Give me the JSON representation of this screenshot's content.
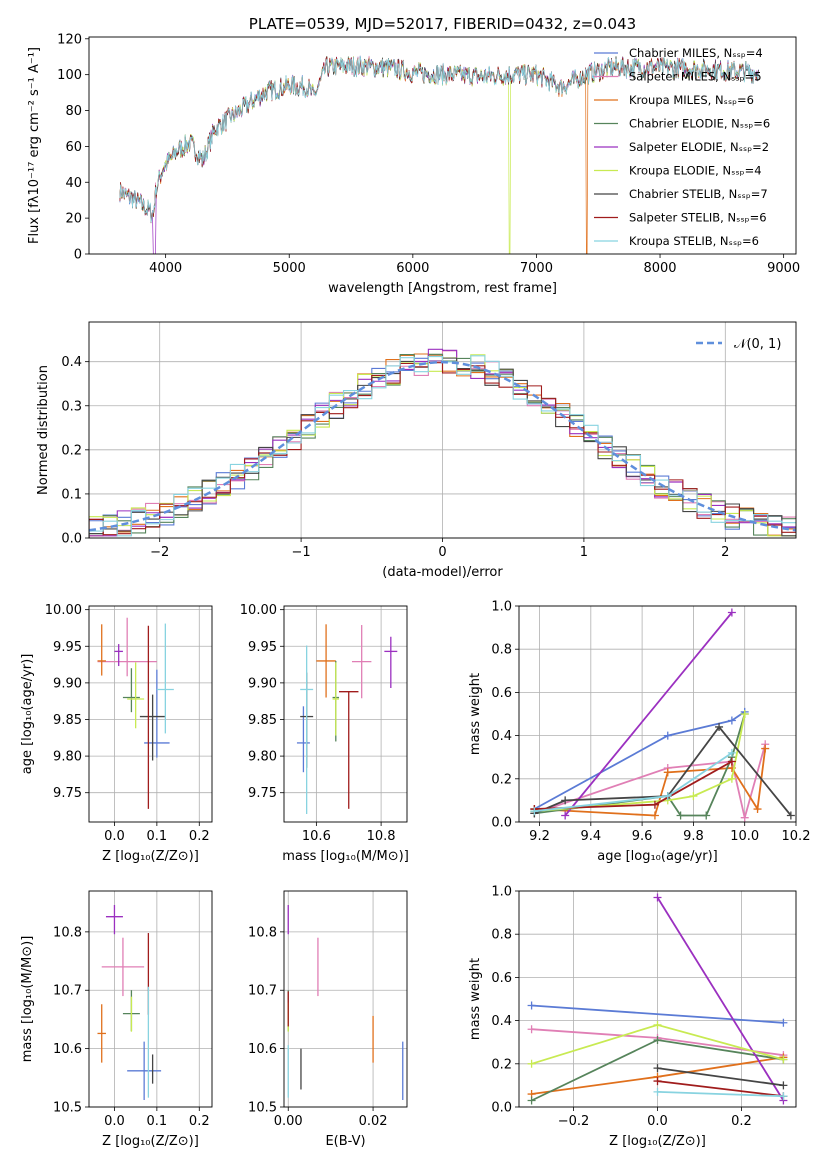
{
  "colors": [
    "#5b7bd5",
    "#e07fb5",
    "#e0701c",
    "#56845b",
    "#9b30c0",
    "#c8ea52",
    "#454545",
    "#a01c1c",
    "#88d3e0"
  ],
  "chart_data": [
    {
      "id": "spectrum",
      "type": "line",
      "title": "PLATE=0539, MJD=52017, FIBERID=0432, z=0.043",
      "xlabel": "wavelength [Angstrom, rest frame]",
      "ylabel": "Flux [fλ10⁻¹⁷ erg cm⁻² s⁻¹ A⁻¹]",
      "xlim": [
        3380,
        9100
      ],
      "ylim": [
        0,
        121
      ],
      "xticks": [
        "4000",
        "5000",
        "6000",
        "7000",
        "8000",
        "9000"
      ],
      "yticks": [
        "0",
        "20",
        "40",
        "60",
        "80",
        "100",
        "120"
      ],
      "legend": [
        "Chabrier MILES, Nₛₛₚ=4",
        "Salpeter MILES, Nₛₛₚ=5",
        "Kroupa MILES, Nₛₛₚ=6",
        "Chabrier ELODIE, Nₛₛₚ=6",
        "Salpeter ELODIE, Nₛₛₚ=2",
        "Kroupa ELODIE, Nₛₛₚ=4",
        "Chabrier STELIB, Nₛₛₚ=7",
        "Salpeter STELIB, Nₛₛₚ=6",
        "Kroupa STELIB, Nₛₛₚ=6"
      ],
      "legend_loc": "right",
      "continuum": [
        [
          3630,
          35
        ],
        [
          3700,
          32
        ],
        [
          3800,
          28
        ],
        [
          3900,
          22
        ],
        [
          3920,
          36
        ],
        [
          3980,
          48
        ],
        [
          4100,
          58
        ],
        [
          4200,
          62
        ],
        [
          4300,
          52
        ],
        [
          4400,
          70
        ],
        [
          4600,
          80
        ],
        [
          4800,
          90
        ],
        [
          5000,
          94
        ],
        [
          5150,
          93
        ],
        [
          5200,
          88
        ],
        [
          5300,
          104
        ],
        [
          5500,
          105
        ],
        [
          5800,
          104
        ],
        [
          6000,
          101
        ],
        [
          6300,
          100
        ],
        [
          6563,
          99
        ],
        [
          6800,
          100
        ],
        [
          7000,
          100
        ],
        [
          7200,
          93
        ],
        [
          7400,
          100
        ],
        [
          7600,
          104
        ],
        [
          8000,
          104
        ],
        [
          8400,
          103
        ],
        [
          8800,
          101
        ]
      ],
      "drops": [
        {
          "series": 4,
          "x_start": 3900,
          "x_end": 3920
        },
        {
          "series": 5,
          "x_start": 6780,
          "x_end": 6790
        },
        {
          "series": 2,
          "x_start": 7400,
          "x_end": 7415
        }
      ]
    },
    {
      "id": "residuals",
      "type": "histogram",
      "xlabel": "(data-model)/error",
      "ylabel": "Normed distribution",
      "xlim": [
        -2.5,
        2.5
      ],
      "ylim": [
        0,
        0.49
      ],
      "xticks": [
        "−2",
        "−1",
        "0",
        "1",
        "2"
      ],
      "yticks": [
        "0.0",
        "0.1",
        "0.2",
        "0.3",
        "0.4"
      ],
      "legend": "𝒩(0, 1)",
      "legend_loc": "top-right"
    },
    {
      "id": "age_vs_Z",
      "type": "errorbar",
      "xlabel": "Z [log₁₀(Z/Z⊙)]",
      "ylabel": "age  [log₁₀(age/yr)]",
      "xlim": [
        -0.06,
        0.23
      ],
      "ylim": [
        9.71,
        10.005
      ],
      "xticks": [
        "0.0",
        "0.1",
        "0.2"
      ],
      "yticks": [
        "9.75",
        "9.80",
        "9.85",
        "9.90",
        "9.95",
        "10.00"
      ],
      "points": [
        [
          0.1,
          9.818,
          0.03,
          0.02,
          0.1
        ],
        [
          0.03,
          9.929,
          0.07,
          0.02,
          0.06
        ],
        [
          -0.03,
          9.93,
          0.01,
          0.02,
          0.05
        ],
        [
          0.04,
          9.88,
          0.02,
          0.02,
          0.04
        ],
        [
          0.01,
          9.943,
          0.01,
          0.02,
          0.01
        ],
        [
          0.05,
          9.878,
          0.02,
          0.04,
          0.05
        ],
        [
          0.09,
          9.854,
          0.03,
          0.06,
          0.03
        ],
        [
          0.08,
          9.888,
          0.0,
          0.16,
          0.09
        ],
        [
          0.12,
          9.891,
          0.02,
          0.06,
          0.09
        ]
      ]
    },
    {
      "id": "age_vs_mass",
      "type": "errorbar",
      "xlabel": "mass [log₁₀(M/M⊙)]",
      "ylabel": "",
      "xlim": [
        10.5,
        10.88
      ],
      "ylim": [
        9.71,
        10.005
      ],
      "xticks": [
        "10.6",
        "10.8"
      ],
      "yticks": [
        "9.75",
        "9.80",
        "9.85",
        "9.90",
        "9.95",
        "10.00"
      ],
      "points": [
        [
          10.56,
          9.818,
          0.02,
          0.04,
          0.05
        ],
        [
          10.74,
          9.929,
          0.03,
          0.05,
          0.05
        ],
        [
          10.63,
          9.93,
          0.03,
          0.05,
          0.05
        ],
        [
          10.66,
          9.88,
          0.01,
          0.06,
          0.05
        ],
        [
          10.83,
          9.943,
          0.02,
          0.05,
          0.02
        ],
        [
          10.66,
          9.878,
          0.01,
          0.05,
          0.05
        ],
        [
          10.57,
          9.854,
          0.02,
          0.07,
          0.06
        ],
        [
          10.7,
          9.888,
          0.03,
          0.16,
          0.0
        ],
        [
          10.57,
          9.891,
          0.02,
          0.17,
          0.06
        ]
      ]
    },
    {
      "id": "weight_vs_age",
      "type": "line",
      "xlabel": "age  [log₁₀(age/yr)]",
      "ylabel": "mass weight",
      "xlim": [
        9.12,
        10.2
      ],
      "ylim": [
        0,
        1
      ],
      "xticks": [
        "9.2",
        "9.4",
        "9.6",
        "9.8",
        "10.0",
        "10.2"
      ],
      "yticks": [
        "0.0",
        "0.2",
        "0.4",
        "0.6",
        "0.8",
        "1.0"
      ],
      "series": [
        {
          "x": [
            9.18,
            9.7,
            9.95,
            10.0
          ],
          "y": [
            0.06,
            0.4,
            0.47,
            0.51
          ]
        },
        {
          "x": [
            9.18,
            9.7,
            9.95,
            10.0,
            10.08
          ],
          "y": [
            0.04,
            0.25,
            0.28,
            0.02,
            0.36
          ]
        },
        {
          "x": [
            9.18,
            9.65,
            9.7,
            9.95,
            10.05,
            10.08
          ],
          "y": [
            0.06,
            0.03,
            0.23,
            0.25,
            0.06,
            0.34
          ]
        },
        {
          "x": [
            9.18,
            9.7,
            9.75,
            9.85,
            9.95,
            10.0
          ],
          "y": [
            0.04,
            0.12,
            0.03,
            0.03,
            0.3,
            0.5
          ]
        },
        {
          "x": [
            9.3,
            9.95
          ],
          "y": [
            0.03,
            0.97
          ]
        },
        {
          "x": [
            9.18,
            9.7,
            9.8,
            9.95,
            10.0
          ],
          "y": [
            0.05,
            0.1,
            0.12,
            0.2,
            0.5
          ]
        },
        {
          "x": [
            9.18,
            9.3,
            9.7,
            9.9,
            10.18
          ],
          "y": [
            0.04,
            0.1,
            0.12,
            0.44,
            0.03
          ]
        },
        {
          "x": [
            9.18,
            9.65,
            9.95
          ],
          "y": [
            0.06,
            0.08,
            0.28
          ]
        },
        {
          "x": [
            9.18,
            9.7,
            9.95
          ],
          "y": [
            0.05,
            0.12,
            0.32
          ]
        }
      ]
    },
    {
      "id": "mass_vs_Z",
      "type": "errorbar",
      "xlabel": "Z [log₁₀(Z/Z⊙)]",
      "ylabel": "mass [log₁₀(M/M⊙)]",
      "xlim": [
        -0.06,
        0.23
      ],
      "ylim": [
        10.5,
        10.87
      ],
      "xticks": [
        "0.0",
        "0.1",
        "0.2"
      ],
      "yticks": [
        "10.5",
        "10.6",
        "10.7",
        "10.8"
      ],
      "points": [
        [
          0.07,
          10.562,
          0.04,
          0.05,
          0.05
        ],
        [
          0.02,
          10.74,
          0.05,
          0.05,
          0.05
        ],
        [
          -0.03,
          10.626,
          0.01,
          0.05,
          0.05
        ],
        [
          0.04,
          10.66,
          0.02,
          0.03,
          0.04
        ],
        [
          0.0,
          10.826,
          0.02,
          0.03,
          0.02
        ],
        [
          0.04,
          10.659,
          0.0,
          0.03,
          0.03
        ],
        [
          0.09,
          10.57,
          0.0,
          0.03,
          0.02
        ],
        [
          0.08,
          10.698,
          0.0,
          0.04,
          0.1
        ],
        [
          0.08,
          10.586,
          0.0,
          0.07,
          0.12
        ]
      ]
    },
    {
      "id": "mass_vs_ebv",
      "type": "errorbar",
      "xlabel": "E(B-V)",
      "ylabel": "",
      "xlim": [
        -0.001,
        0.028
      ],
      "ylim": [
        10.5,
        10.87
      ],
      "xticks": [
        "0.00",
        "0.02"
      ],
      "yticks": [
        "10.5",
        "10.6",
        "10.7",
        "10.8"
      ],
      "points": [
        [
          0.027,
          10.562,
          0,
          0.05,
          0.05
        ],
        [
          0.007,
          10.74,
          0,
          0.05,
          0.05
        ],
        [
          0.02,
          10.626,
          0,
          0.05,
          0.03
        ],
        [
          0.0,
          10.66,
          0,
          0.03,
          0.04
        ],
        [
          0.0,
          10.826,
          0,
          0.03,
          0.02
        ],
        [
          0.0,
          10.659,
          0,
          0.03,
          0.02
        ],
        [
          0.003,
          10.57,
          0,
          0.04,
          0.03
        ],
        [
          0.0,
          10.698,
          0,
          0.06,
          0.0
        ],
        [
          0.0,
          10.586,
          0,
          0.07,
          0.02
        ]
      ]
    },
    {
      "id": "weight_vs_Z",
      "type": "line",
      "xlabel": "Z [log₁₀(Z/Z⊙)]",
      "ylabel": "mass weight",
      "xlim": [
        -0.33,
        0.33
      ],
      "ylim": [
        0,
        1
      ],
      "xticks": [
        "−0.2",
        "0.0",
        "0.2"
      ],
      "yticks": [
        "0.0",
        "0.2",
        "0.4",
        "0.6",
        "0.8",
        "1.0"
      ],
      "series": [
        {
          "x": [
            -0.3,
            0.3
          ],
          "y": [
            0.47,
            0.39
          ]
        },
        {
          "x": [
            -0.3,
            0.0,
            0.3
          ],
          "y": [
            0.36,
            0.32,
            0.24
          ]
        },
        {
          "x": [
            -0.3,
            0.0,
            0.3
          ],
          "y": [
            0.06,
            0.14,
            0.23
          ]
        },
        {
          "x": [
            -0.3,
            0.0,
            0.3
          ],
          "y": [
            0.03,
            0.31,
            0.22
          ]
        },
        {
          "x": [
            0.0,
            0.3
          ],
          "y": [
            0.97,
            0.03
          ]
        },
        {
          "x": [
            -0.3,
            0.0,
            0.3
          ],
          "y": [
            0.2,
            0.38,
            0.22
          ]
        },
        {
          "x": [
            0.0,
            0.3
          ],
          "y": [
            0.18,
            0.1
          ]
        },
        {
          "x": [
            0.0,
            0.3
          ],
          "y": [
            0.12,
            0.05
          ]
        },
        {
          "x": [
            0.0,
            0.3
          ],
          "y": [
            0.07,
            0.05
          ]
        }
      ]
    }
  ]
}
